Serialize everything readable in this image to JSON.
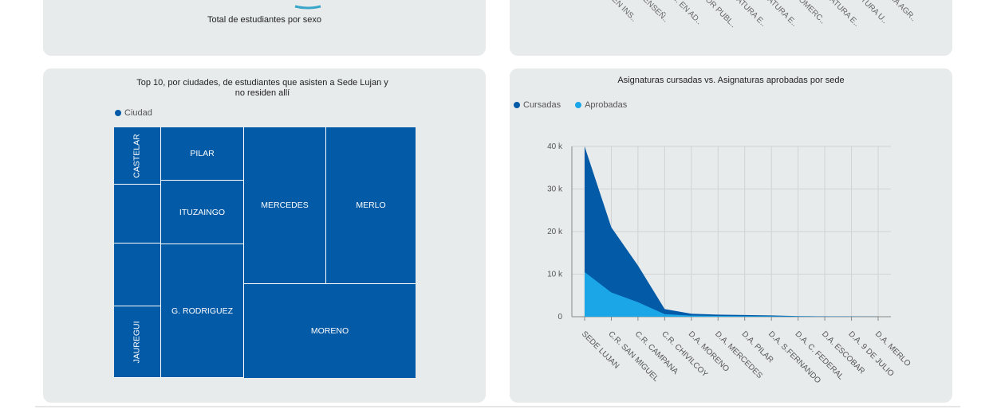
{
  "top_left_panel": {
    "title": "Total de estudiantes por sexo",
    "colors": {
      "arc": "#3aa6c9"
    }
  },
  "top_right_panel": {
    "axis_labels": [
      "EN INS..",
      "ENSEÑ..",
      "I. EN AD..",
      "OR PUBL..",
      "ATURA E..",
      "ATURA E..",
      "OMERC..",
      "ATURA E..",
      "TURA U..",
      "IA AGR.."
    ]
  },
  "treemap": {
    "title": "Top 10, por ciudades, de estudiantes que asisten a Sede Lujan y no residen allí",
    "legend": "Ciudad",
    "colors": {
      "cell": "#035aa6",
      "legend_dot": "#035aa6"
    },
    "cells": [
      {
        "label": "CASTELAR",
        "vertical": true
      },
      {
        "label": "",
        "vertical": false
      },
      {
        "label": "",
        "vertical": false
      },
      {
        "label": "JAUREGUI",
        "vertical": true
      },
      {
        "label": "PILAR",
        "vertical": false
      },
      {
        "label": "ITUZAINGO",
        "vertical": false
      },
      {
        "label": "G. RODRIGUEZ",
        "vertical": false
      },
      {
        "label": "MERCEDES",
        "vertical": false
      },
      {
        "label": "MERLO",
        "vertical": false
      },
      {
        "label": "MORENO",
        "vertical": false
      }
    ]
  },
  "chart_data": {
    "type": "area",
    "title": "Asignaturas cursadas vs. Asignaturas aprobadas por sede",
    "xlabel": "",
    "ylabel": "",
    "categories": [
      "SEDE LUJAN",
      "C.R. SAN MIGUEL",
      "C.R. CAMPANA",
      "C.R. CHIVILCOY",
      "D.A. MORENO",
      "D.A. MERCEDES",
      "D.A. PILAR",
      "D.A. S.FERNANDO",
      "D.A. C. FEDERAL",
      "D.A. ESCOBAR",
      "D.A. 9 DE JULIO",
      "D.A. MERLO"
    ],
    "series": [
      {
        "name": "Cursadas",
        "color": "#035aa6",
        "values": [
          40000,
          21000,
          12000,
          1800,
          700,
          500,
          400,
          300,
          150,
          80,
          50,
          30
        ]
      },
      {
        "name": "Aprobadas",
        "color": "#1ba6e8",
        "values": [
          10500,
          5700,
          3400,
          600,
          250,
          180,
          150,
          120,
          60,
          30,
          20,
          10
        ]
      }
    ],
    "ylim": [
      0,
      40000
    ],
    "yticks": [
      0,
      10000,
      20000,
      30000,
      40000
    ],
    "ytick_labels": [
      "0",
      "10 k",
      "20 k",
      "30 k",
      "40 k"
    ],
    "grid": true,
    "legend_position": "top-left"
  }
}
